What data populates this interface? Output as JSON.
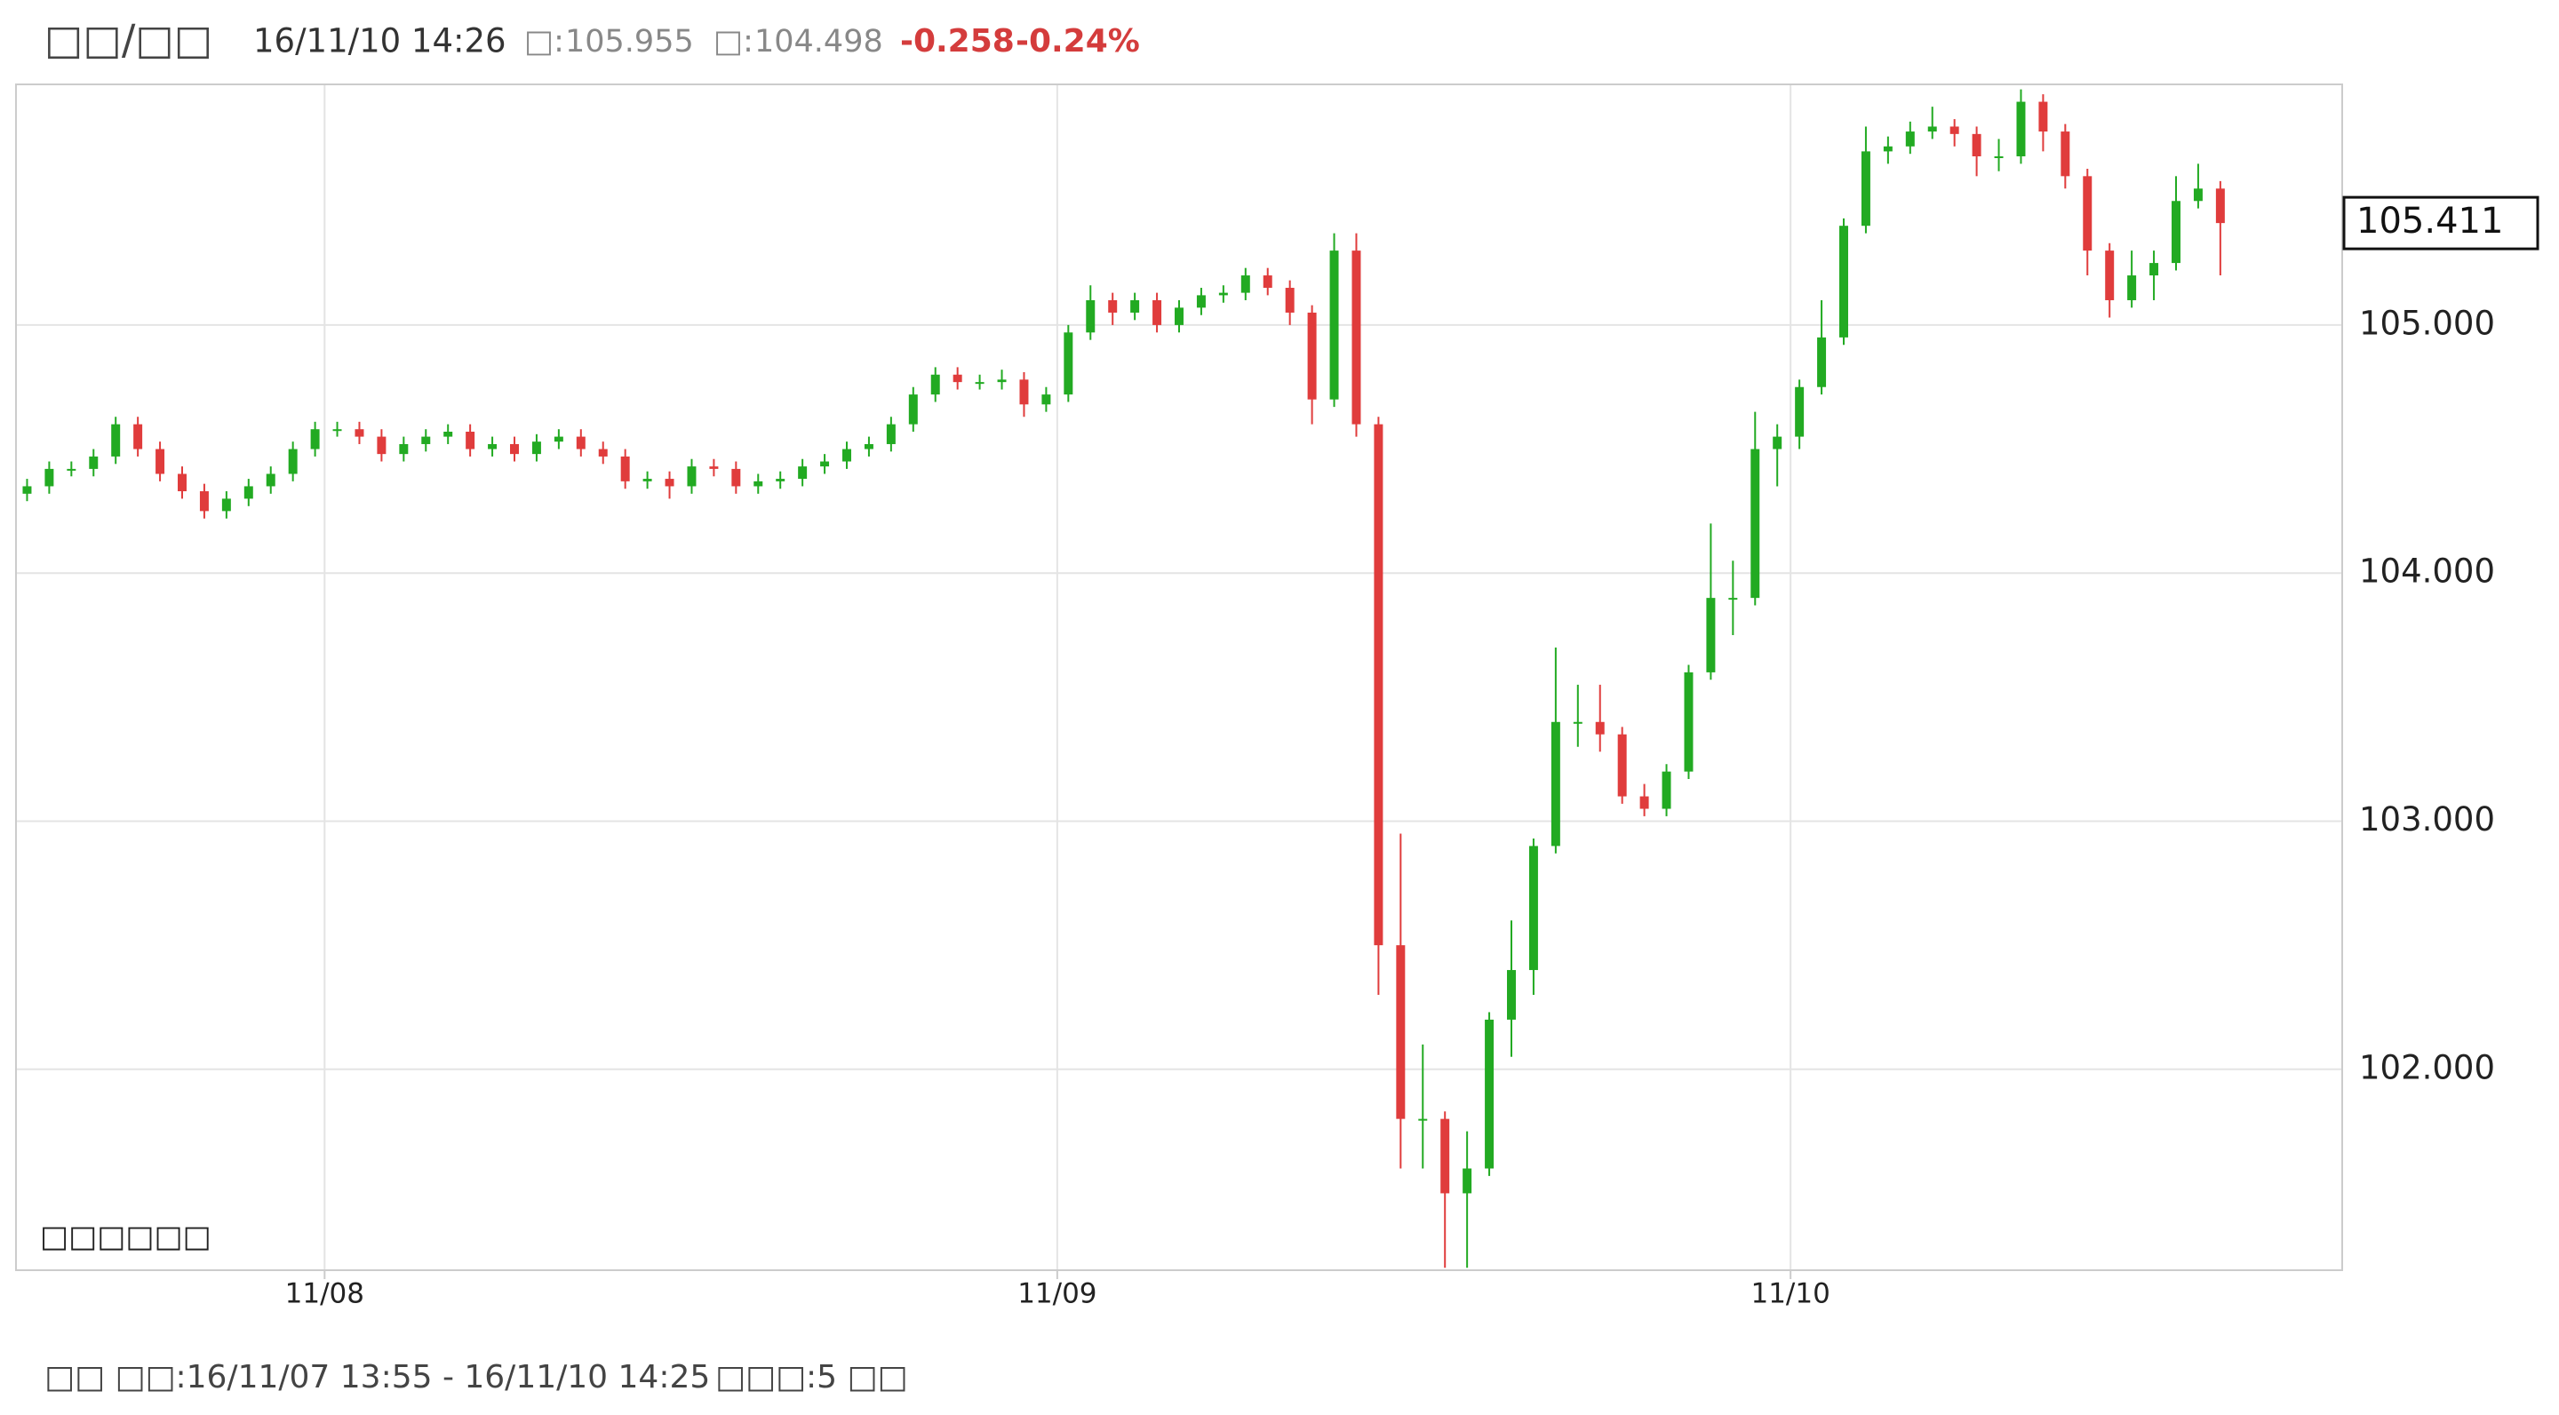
{
  "header": {
    "title": "□□/□□",
    "time": "16/11/10 14:26",
    "high_label": "□:",
    "high": 105.955,
    "low_label": "□:",
    "low": 104.498,
    "change": -0.258,
    "change_pct": "-0.24%"
  },
  "chart_data": {
    "type": "candlestick",
    "legend": "□□□□□□",
    "up_color": "#22aa22",
    "down_color": "#e03c3c",
    "grid": true,
    "open": [
      104.32,
      104.35,
      104.42,
      104.42,
      104.47,
      104.6,
      104.5,
      104.4,
      104.33,
      104.25,
      104.3,
      104.35,
      104.4,
      104.5,
      104.58,
      104.58,
      104.55,
      104.48,
      104.52,
      104.55,
      104.57,
      104.5,
      104.52,
      104.48,
      104.53,
      104.55,
      104.5,
      104.47,
      104.37,
      104.38,
      104.35,
      104.43,
      104.42,
      104.35,
      104.37,
      104.38,
      104.43,
      104.45,
      104.5,
      104.52,
      104.6,
      104.72,
      104.8,
      104.77,
      104.77,
      104.78,
      104.68,
      104.72,
      104.97,
      105.1,
      105.05,
      105.1,
      105.0,
      105.07,
      105.12,
      105.13,
      105.2,
      105.15,
      105.05,
      104.7,
      105.3,
      104.6,
      102.5,
      101.8,
      101.8,
      101.5,
      101.6,
      102.2,
      102.4,
      102.9,
      103.4,
      103.4,
      103.35,
      103.1,
      103.05,
      103.2,
      103.6,
      103.9,
      103.9,
      104.5,
      104.55,
      104.75,
      104.95,
      105.4,
      105.7,
      105.72,
      105.78,
      105.8,
      105.77,
      105.68,
      105.68,
      105.9,
      105.78,
      105.6,
      105.3,
      105.1,
      105.2,
      105.25,
      105.5,
      105.55
    ],
    "high": [
      104.38,
      104.45,
      104.45,
      104.5,
      104.63,
      104.63,
      104.53,
      104.43,
      104.36,
      104.33,
      104.38,
      104.43,
      104.53,
      104.61,
      104.61,
      104.61,
      104.58,
      104.55,
      104.58,
      104.6,
      104.6,
      104.55,
      104.55,
      104.56,
      104.58,
      104.58,
      104.53,
      104.5,
      104.41,
      104.41,
      104.46,
      104.46,
      104.45,
      104.4,
      104.41,
      104.46,
      104.48,
      104.53,
      104.55,
      104.63,
      104.75,
      104.83,
      104.83,
      104.8,
      104.82,
      104.81,
      104.75,
      105.0,
      105.16,
      105.13,
      105.13,
      105.13,
      105.1,
      105.15,
      105.16,
      105.23,
      105.23,
      105.18,
      105.08,
      105.37,
      105.37,
      104.63,
      102.95,
      102.1,
      101.83,
      101.75,
      102.23,
      102.6,
      102.93,
      103.7,
      103.55,
      103.55,
      103.38,
      103.15,
      103.23,
      103.63,
      104.2,
      104.05,
      104.65,
      104.6,
      104.78,
      105.1,
      105.43,
      105.8,
      105.76,
      105.82,
      105.88,
      105.83,
      105.8,
      105.75,
      105.95,
      105.93,
      105.81,
      105.63,
      105.33,
      105.3,
      105.3,
      105.6,
      105.65,
      105.58
    ],
    "low": [
      104.29,
      104.32,
      104.39,
      104.39,
      104.44,
      104.47,
      104.37,
      104.3,
      104.22,
      104.22,
      104.27,
      104.32,
      104.37,
      104.47,
      104.55,
      104.52,
      104.45,
      104.45,
      104.49,
      104.52,
      104.47,
      104.47,
      104.45,
      104.45,
      104.5,
      104.47,
      104.44,
      104.34,
      104.34,
      104.3,
      104.32,
      104.39,
      104.32,
      104.32,
      104.34,
      104.35,
      104.4,
      104.42,
      104.47,
      104.49,
      104.57,
      104.69,
      104.74,
      104.74,
      104.74,
      104.63,
      104.65,
      104.69,
      104.94,
      105.0,
      105.02,
      104.97,
      104.97,
      105.04,
      105.09,
      105.1,
      105.12,
      105.0,
      104.6,
      104.67,
      104.55,
      102.3,
      101.6,
      101.6,
      101.2,
      101.2,
      101.57,
      102.05,
      102.3,
      102.87,
      103.3,
      103.28,
      103.07,
      103.02,
      103.02,
      103.17,
      103.57,
      103.75,
      103.87,
      104.35,
      104.5,
      104.72,
      104.92,
      105.37,
      105.65,
      105.69,
      105.75,
      105.72,
      105.6,
      105.62,
      105.65,
      105.7,
      105.55,
      105.2,
      105.03,
      105.07,
      105.1,
      105.22,
      105.47,
      105.2
    ],
    "close": [
      104.35,
      104.42,
      104.42,
      104.47,
      104.6,
      104.5,
      104.4,
      104.33,
      104.25,
      104.3,
      104.35,
      104.4,
      104.5,
      104.58,
      104.58,
      104.55,
      104.48,
      104.52,
      104.55,
      104.57,
      104.5,
      104.52,
      104.48,
      104.53,
      104.55,
      104.5,
      104.47,
      104.37,
      104.38,
      104.35,
      104.43,
      104.42,
      104.35,
      104.37,
      104.38,
      104.43,
      104.45,
      104.5,
      104.52,
      104.6,
      104.72,
      104.8,
      104.77,
      104.77,
      104.78,
      104.68,
      104.72,
      104.97,
      105.1,
      105.05,
      105.1,
      105.0,
      105.07,
      105.12,
      105.13,
      105.2,
      105.15,
      105.05,
      104.7,
      105.3,
      104.6,
      102.5,
      101.8,
      101.8,
      101.5,
      101.6,
      102.2,
      102.4,
      102.9,
      103.4,
      103.4,
      103.35,
      103.1,
      103.05,
      103.2,
      103.6,
      103.9,
      103.9,
      104.5,
      104.55,
      104.75,
      104.95,
      105.4,
      105.7,
      105.72,
      105.78,
      105.8,
      105.77,
      105.68,
      105.68,
      105.9,
      105.78,
      105.6,
      105.3,
      105.1,
      105.2,
      105.25,
      105.5,
      105.55,
      105.411
    ],
    "xlim": [
      0,
      105
    ],
    "xticks": [
      {
        "value": 13.93,
        "label": "11/08"
      },
      {
        "value": 47.0,
        "label": "11/09"
      },
      {
        "value": 80.1,
        "label": "11/10"
      }
    ],
    "ylim": [
      101.19,
      105.97
    ],
    "yticks": [
      {
        "value": 102,
        "label": "102.000"
      },
      {
        "value": 103,
        "label": "103.000"
      },
      {
        "value": 104,
        "label": "104.000"
      },
      {
        "value": 105,
        "label": "105.000"
      }
    ]
  },
  "footer": {
    "range": "□□ □□:16/11/07 13:55 - 16/11/10 14:25",
    "interval": "□□□:5 □□"
  }
}
